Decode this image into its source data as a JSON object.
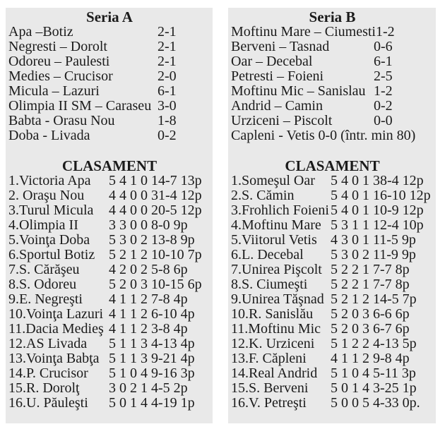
{
  "colors": {
    "panel_background": "#e9e9e9",
    "page_background": "#ffffff",
    "text": "#1b1b1b"
  },
  "sections": [
    {
      "title": "Seria A",
      "clasament_title": "CLASAMENT",
      "matches": [
        {
          "teams": "Apa –Botiz",
          "score": "2-1"
        },
        {
          "teams": "Negresti – Dorolt",
          "score": "2-1"
        },
        {
          "teams": "Odoreu – Paulesti",
          "score": "2-1"
        },
        {
          "teams": "Medies – Crucisor",
          "score": "2-0"
        },
        {
          "teams": "Micula – Lazuri",
          "score": "6-1"
        },
        {
          "teams": "Olimpia II SM – Caraseu",
          "score": "3-0"
        },
        {
          "teams": "Babta - Orasu Nou",
          "score": "1-8"
        },
        {
          "teams": "Doba - Livada",
          "score": "0-2"
        }
      ],
      "standings": [
        {
          "team": "1.Victoria Apa",
          "stats": "5 4 1 0 14-7 13p"
        },
        {
          "team": "2. Oraşu Nou",
          "stats": "4 4 0 0 31-4 12p"
        },
        {
          "team": "3.Turul Micula",
          "stats": "4 4 0 0 20-5 12p"
        },
        {
          "team": "4.Olimpia II",
          "stats": "3 3 0 0 8-0 9p"
        },
        {
          "team": "5.Voinţa Doba",
          "stats": "5 3 0 2 13-8 9p"
        },
        {
          "team": "6.Sportul Botiz",
          "stats": "5 2 1 2 10-10 7p"
        },
        {
          "team": "7.S. Cărăşeu",
          "stats": "4 2 0 2 5-8 6p"
        },
        {
          "team": "8.S. Odoreu",
          "stats": "5 2 0 3 10-15 6p"
        },
        {
          "team": "9.E. Negreşti",
          "stats": "4 1 1 2 7-8 4p"
        },
        {
          "team": "10.Voinţa Lazuri",
          "stats": "4 1 1 2 6-10 4p"
        },
        {
          "team": "11.Dacia Medieş",
          "stats": "4 1 1 2 3-8 4p"
        },
        {
          "team": "12.AS Livada",
          "stats": "5 1 1 3 4-13 4p"
        },
        {
          "team": "13.Voinţa Babţa",
          "stats": "5 1 1 3 9-21 4p"
        },
        {
          "team": "14.P. Crucisor",
          "stats": "5 1 0 4 9-16 3p"
        },
        {
          "team": "15.R. Dorolţ",
          "stats": "3 0 2 1 4-5 2p"
        },
        {
          "team": "16.U. Păuleşti",
          "stats": "5 0 1 4 4-19 1p"
        }
      ]
    },
    {
      "title": "Seria B",
      "clasament_title": "CLASAMENT",
      "matches": [
        {
          "teams": "Moftinu Mare – Ciumesti",
          "score": "1-2"
        },
        {
          "teams": "Berveni – Tasnad",
          "score": "0-6"
        },
        {
          "teams": "Oar – Decebal",
          "score": "6-1"
        },
        {
          "teams": "Petresti – Foieni",
          "score": "2-5"
        },
        {
          "teams": "Moftinu Mic – Sanislau",
          "score": "1-2"
        },
        {
          "teams": "Andrid – Camin",
          "score": "0-2"
        },
        {
          "teams": "Urziceni – Piscolt",
          "score": "0-0"
        },
        {
          "teams": "Capleni - Vetis 0-0 (într. min 80)",
          "score": ""
        }
      ],
      "standings": [
        {
          "team": "1.Someşul Oar",
          "stats": "5 4 0 1 38-4 12p"
        },
        {
          "team": "2.S. Cămin",
          "stats": "5 4 0 1 16-10 12p"
        },
        {
          "team": "3.Frohlich Foieni",
          "stats": "5 4 0 1 10-9 12p"
        },
        {
          "team": "4.Moftinu Mare",
          "stats": "5 3 1 1 12-4 10p"
        },
        {
          "team": "5.Viitorul Vetis",
          "stats": "4 3 0 1 11-5 9p"
        },
        {
          "team": "6.L. Decebal",
          "stats": "5 3 0 2 11-9 9p"
        },
        {
          "team": "7.Unirea Pişcolt",
          "stats": "5 2 2 1 7-7 8p"
        },
        {
          "team": "8.S. Ciumeşti",
          "stats": "5 2 2 1 7-7 8p"
        },
        {
          "team": "9.Unirea Tăşnad",
          "stats": "5 2 1 2 14-5 7p"
        },
        {
          "team": "10.R. Sanislău",
          "stats": "5 2 0 3 6-6 6p"
        },
        {
          "team": "11.Moftinu Mic",
          "stats": "5 2 0 3 6-7 6p"
        },
        {
          "team": "12.K. Urziceni",
          "stats": "5 1 2 2 4-13 5p"
        },
        {
          "team": "13.F. Căpleni",
          "stats": "4 1 1 2 9-8 4p"
        },
        {
          "team": "14.Real Andrid",
          "stats": "5 1 0 4 5-11 3p"
        },
        {
          "team": "15.S. Berveni",
          "stats": "5 0 1 4 3-25 1p"
        },
        {
          "team": "16.V. Petreşti",
          "stats": "5 0 0 5 4-33 0p."
        }
      ]
    }
  ]
}
